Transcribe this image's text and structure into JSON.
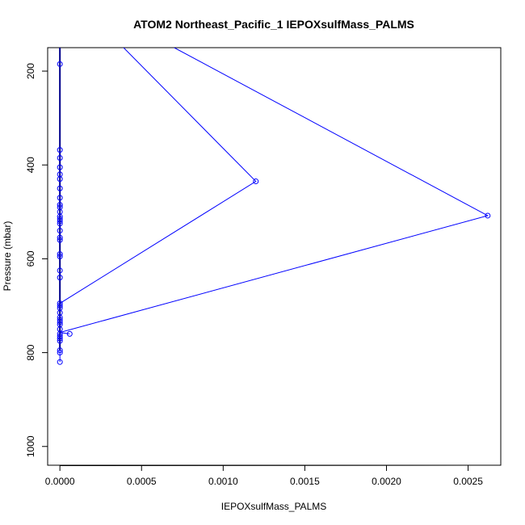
{
  "chart_data": {
    "type": "line",
    "title": "ATOM2 Northeast_Pacific_1 IEPOXsulfMass_PALMS",
    "xlabel": "IEPOXsulfMass_PALMS",
    "ylabel": "Pressure (mbar)",
    "xlim": [
      -7.5e-05,
      0.0027
    ],
    "ylim": [
      1040,
      150
    ],
    "y_reversed": true,
    "xticks": [
      0,
      0.0005,
      0.001,
      0.0015,
      0.002,
      0.0025
    ],
    "xtick_labels": [
      "0.0000",
      "0.0005",
      "0.0010",
      "0.0015",
      "0.0020",
      "0.0025"
    ],
    "yticks": [
      200,
      400,
      600,
      800,
      1000
    ],
    "ytick_labels": [
      "200",
      "400",
      "600",
      "800",
      "1000"
    ],
    "grid": false,
    "colors": {
      "series": "#0000ff",
      "axis": "#000000"
    },
    "series": [
      {
        "marker": "open-circle",
        "x": [
          0,
          0,
          0,
          0,
          0,
          0,
          0,
          0,
          0,
          0,
          0,
          0,
          0,
          0,
          0,
          0,
          0,
          0,
          0,
          0,
          0,
          0,
          0,
          0,
          0,
          0,
          0,
          0,
          0,
          0,
          0,
          0,
          0,
          0,
          0,
          0,
          0,
          0,
          0.0012,
          0.00262,
          6e-05
        ],
        "y": [
          185,
          368,
          385,
          405,
          420,
          430,
          450,
          470,
          485,
          490,
          500,
          510,
          515,
          520,
          525,
          540,
          555,
          560,
          590,
          595,
          625,
          640,
          695,
          700,
          705,
          715,
          725,
          730,
          735,
          740,
          750,
          760,
          765,
          770,
          795,
          800,
          820,
          775,
          435,
          508,
          760
        ]
      }
    ],
    "line_segments": [
      {
        "x": [
          0,
          0
        ],
        "y": [
          150,
          820
        ]
      },
      {
        "x": [
          0.00039,
          0.0012,
          0,
          0
        ],
        "y": [
          150,
          435,
          695,
          150
        ]
      },
      {
        "x": [
          0.0007,
          0.00262,
          0,
          6e-05
        ],
        "y": [
          150,
          508,
          757,
          760
        ]
      }
    ]
  }
}
